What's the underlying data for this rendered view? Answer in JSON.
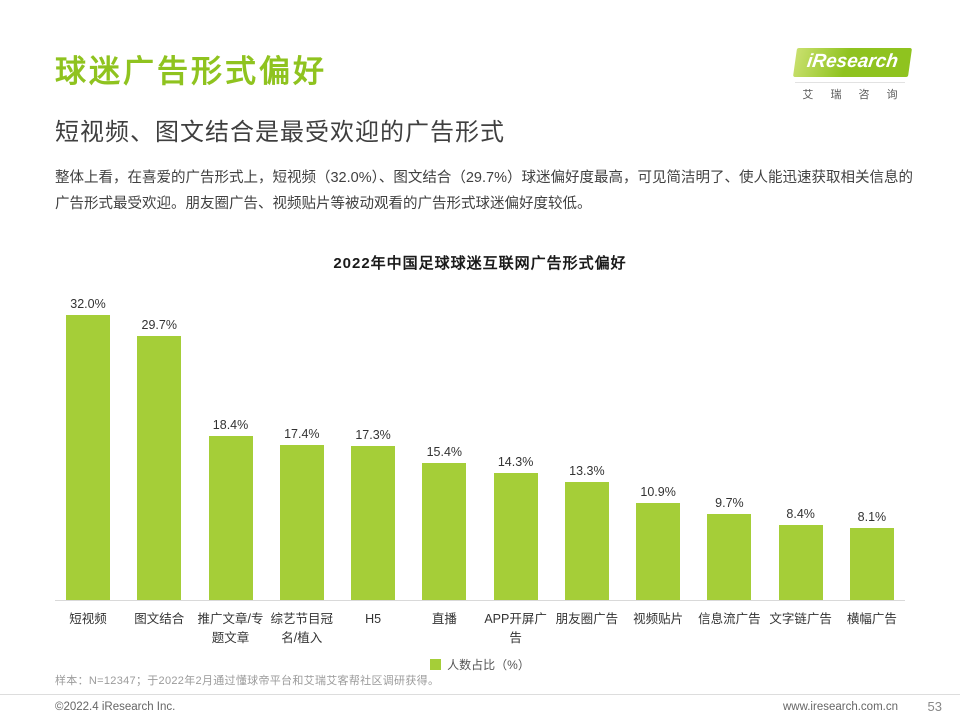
{
  "logo": {
    "brand": "iResearch",
    "sub": "艾 瑞 咨 询"
  },
  "header": {
    "title": "球迷广告形式偏好",
    "subtitle": "短视频、图文结合是最受欢迎的广告形式"
  },
  "body": {
    "paragraph": "整体上看，在喜爱的广告形式上，短视频（32.0%）、图文结合（29.7%）球迷偏好度最高，可见简洁明了、使人能迅速获取相关信息的广告形式最受欢迎。朋友圈广告、视频贴片等被动观看的广告形式球迷偏好度较低。"
  },
  "chart_data": {
    "type": "bar",
    "title": "2022年中国足球球迷互联网广告形式偏好",
    "categories": [
      "短视频",
      "图文结合",
      "推广文章/专题文章",
      "综艺节目冠名/植入",
      "H5",
      "直播",
      "APP开屏广告",
      "朋友圈广告",
      "视频贴片",
      "信息流广告",
      "文字链广告",
      "横幅广告"
    ],
    "values": [
      32.0,
      29.7,
      18.4,
      17.4,
      17.3,
      15.4,
      14.3,
      13.3,
      10.9,
      9.7,
      8.4,
      8.1
    ],
    "value_labels": [
      "32.0%",
      "29.7%",
      "18.4%",
      "17.4%",
      "17.3%",
      "15.4%",
      "14.3%",
      "13.3%",
      "10.9%",
      "9.7%",
      "8.4%",
      "8.1%"
    ],
    "legend": "人数占比（%）",
    "bar_color": "#a5ce38",
    "ylim": [
      0,
      35
    ],
    "grid": false,
    "legend_position": "bottom-center"
  },
  "footnote": "样本：N=12347；于2022年2月通过懂球帝平台和艾瑞艾客帮社区调研获得。",
  "footer": {
    "copyright": "©2022.4 iResearch Inc.",
    "url": "www.iresearch.com.cn",
    "page": "53"
  }
}
